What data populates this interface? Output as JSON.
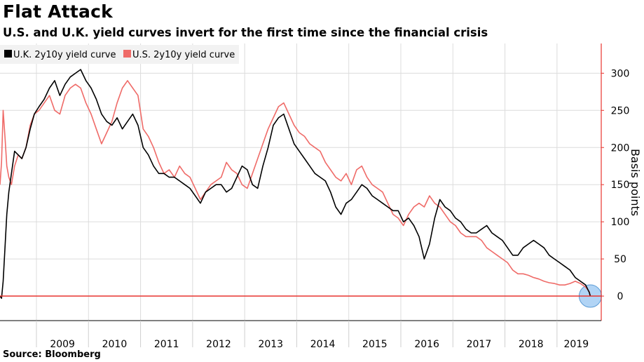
{
  "title": "Flat Attack",
  "subtitle": "U.S. and U.K. yield curves invert for the first time since the financial crisis",
  "source": "Source: Bloomberg",
  "chart_data": {
    "type": "line",
    "ylabel": "Basis points",
    "ylim": [
      -33,
      340
    ],
    "xlim": [
      2008.3,
      2019.85
    ],
    "yticks": [
      0,
      50,
      100,
      150,
      200,
      250,
      300
    ],
    "year_labels": [
      "2009",
      "2010",
      "2011",
      "2012",
      "2013",
      "2014",
      "2015",
      "2016",
      "2017",
      "2018",
      "2019"
    ],
    "year_label_positions": [
      2009.5,
      2010.5,
      2011.5,
      2012.5,
      2013.5,
      2014.5,
      2015.5,
      2016.5,
      2017.5,
      2018.5,
      2019.37
    ],
    "year_boundaries": [
      2009,
      2010,
      2011,
      2012,
      2013,
      2014,
      2015,
      2016,
      2017,
      2018,
      2019
    ],
    "grid": true,
    "legend_position": "top-left",
    "zero_line_color": "#e8342e",
    "axis_color": "#e8342e",
    "highlight": {
      "x": 2019.64,
      "y": 0,
      "color": "#9ec9f2"
    },
    "series": [
      {
        "name": "U.K. 2y10y yield curve",
        "color": "#000000",
        "x": [
          2008.3,
          2008.33,
          2008.36,
          2008.4,
          2008.43,
          2008.47,
          2008.52,
          2008.58,
          2008.65,
          2008.72,
          2008.8,
          2008.88,
          2008.96,
          2009.05,
          2009.15,
          2009.25,
          2009.35,
          2009.45,
          2009.55,
          2009.65,
          2009.75,
          2009.85,
          2009.95,
          2010.05,
          2010.15,
          2010.25,
          2010.35,
          2010.45,
          2010.55,
          2010.65,
          2010.75,
          2010.85,
          2010.95,
          2011.05,
          2011.15,
          2011.25,
          2011.35,
          2011.45,
          2011.55,
          2011.65,
          2011.75,
          2011.85,
          2011.95,
          2012.05,
          2012.15,
          2012.25,
          2012.35,
          2012.45,
          2012.55,
          2012.65,
          2012.75,
          2012.85,
          2012.95,
          2013.05,
          2013.15,
          2013.25,
          2013.35,
          2013.45,
          2013.55,
          2013.65,
          2013.75,
          2013.85,
          2013.95,
          2014.05,
          2014.15,
          2014.25,
          2014.35,
          2014.45,
          2014.55,
          2014.65,
          2014.75,
          2014.85,
          2014.95,
          2015.05,
          2015.15,
          2015.25,
          2015.35,
          2015.45,
          2015.55,
          2015.65,
          2015.75,
          2015.85,
          2015.95,
          2016.05,
          2016.15,
          2016.25,
          2016.35,
          2016.45,
          2016.55,
          2016.65,
          2016.75,
          2016.85,
          2016.95,
          2017.05,
          2017.15,
          2017.25,
          2017.35,
          2017.45,
          2017.55,
          2017.65,
          2017.75,
          2017.85,
          2017.95,
          2018.05,
          2018.15,
          2018.25,
          2018.35,
          2018.45,
          2018.55,
          2018.65,
          2018.75,
          2018.85,
          2018.95,
          2019.05,
          2019.15,
          2019.25,
          2019.35,
          2019.45,
          2019.55,
          2019.62,
          2019.64
        ],
        "y": [
          0,
          -3,
          20,
          70,
          110,
          140,
          165,
          195,
          190,
          185,
          200,
          225,
          245,
          255,
          265,
          280,
          290,
          270,
          285,
          295,
          300,
          305,
          290,
          280,
          265,
          245,
          235,
          230,
          240,
          225,
          235,
          245,
          230,
          200,
          190,
          175,
          165,
          165,
          160,
          160,
          155,
          150,
          145,
          135,
          125,
          140,
          145,
          150,
          150,
          140,
          145,
          160,
          175,
          170,
          150,
          145,
          175,
          200,
          230,
          240,
          245,
          225,
          205,
          195,
          185,
          175,
          165,
          160,
          155,
          140,
          120,
          110,
          125,
          130,
          140,
          150,
          145,
          135,
          130,
          125,
          120,
          115,
          115,
          100,
          105,
          95,
          80,
          50,
          70,
          105,
          130,
          120,
          115,
          105,
          100,
          90,
          85,
          85,
          90,
          95,
          85,
          80,
          75,
          65,
          55,
          55,
          65,
          70,
          75,
          70,
          65,
          55,
          50,
          45,
          40,
          35,
          25,
          20,
          15,
          5,
          0
        ]
      },
      {
        "name": "U.S. 2y10y yield curve",
        "color": "#ef6b68",
        "x": [
          2008.3,
          2008.33,
          2008.36,
          2008.4,
          2008.43,
          2008.47,
          2008.52,
          2008.58,
          2008.65,
          2008.72,
          2008.8,
          2008.88,
          2008.96,
          2009.05,
          2009.15,
          2009.25,
          2009.35,
          2009.45,
          2009.55,
          2009.65,
          2009.75,
          2009.85,
          2009.95,
          2010.05,
          2010.15,
          2010.25,
          2010.35,
          2010.45,
          2010.55,
          2010.65,
          2010.75,
          2010.85,
          2010.95,
          2011.05,
          2011.15,
          2011.25,
          2011.35,
          2011.45,
          2011.55,
          2011.65,
          2011.75,
          2011.85,
          2011.95,
          2012.05,
          2012.15,
          2012.25,
          2012.35,
          2012.45,
          2012.55,
          2012.65,
          2012.75,
          2012.85,
          2012.95,
          2013.05,
          2013.15,
          2013.25,
          2013.35,
          2013.45,
          2013.55,
          2013.65,
          2013.75,
          2013.85,
          2013.95,
          2014.05,
          2014.15,
          2014.25,
          2014.35,
          2014.45,
          2014.55,
          2014.65,
          2014.75,
          2014.85,
          2014.95,
          2015.05,
          2015.15,
          2015.25,
          2015.35,
          2015.45,
          2015.55,
          2015.65,
          2015.75,
          2015.85,
          2015.95,
          2016.05,
          2016.15,
          2016.25,
          2016.35,
          2016.45,
          2016.55,
          2016.65,
          2016.75,
          2016.85,
          2016.95,
          2017.05,
          2017.15,
          2017.25,
          2017.35,
          2017.45,
          2017.55,
          2017.65,
          2017.75,
          2017.85,
          2017.95,
          2018.05,
          2018.15,
          2018.25,
          2018.35,
          2018.45,
          2018.55,
          2018.65,
          2018.75,
          2018.85,
          2018.95,
          2019.05,
          2019.15,
          2019.25,
          2019.35,
          2019.45,
          2019.55,
          2019.62,
          2019.64
        ],
        "y": [
          150,
          180,
          250,
          210,
          175,
          160,
          150,
          175,
          190,
          185,
          200,
          230,
          245,
          250,
          260,
          270,
          250,
          245,
          270,
          280,
          285,
          280,
          260,
          245,
          225,
          205,
          220,
          235,
          260,
          280,
          290,
          280,
          270,
          225,
          215,
          200,
          180,
          165,
          170,
          160,
          175,
          165,
          160,
          145,
          130,
          140,
          150,
          155,
          160,
          180,
          170,
          165,
          150,
          145,
          165,
          185,
          205,
          225,
          240,
          255,
          260,
          245,
          230,
          220,
          215,
          205,
          200,
          195,
          180,
          170,
          160,
          155,
          165,
          150,
          170,
          175,
          160,
          150,
          145,
          140,
          125,
          110,
          105,
          95,
          110,
          120,
          125,
          120,
          135,
          125,
          120,
          110,
          100,
          95,
          85,
          80,
          80,
          80,
          75,
          65,
          60,
          55,
          50,
          45,
          35,
          30,
          30,
          28,
          25,
          23,
          20,
          18,
          17,
          15,
          15,
          17,
          20,
          17,
          12,
          6,
          0
        ]
      }
    ]
  }
}
